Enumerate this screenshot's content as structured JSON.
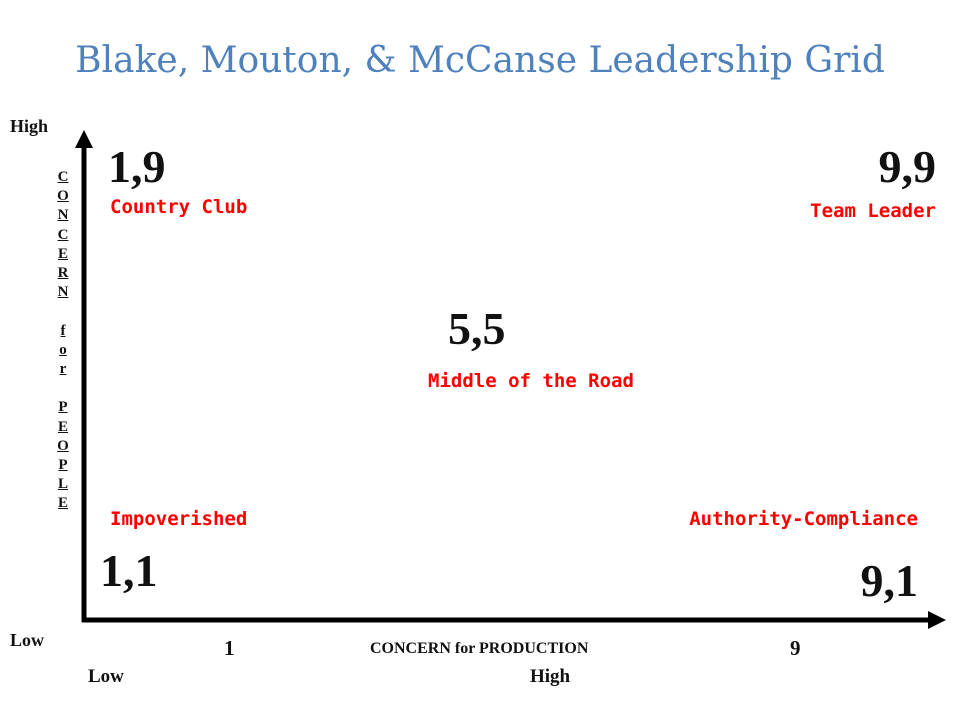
{
  "title": "Blake, Mouton, & McCanse Leadership Grid",
  "y_axis": {
    "label": "CONCERN for PEOPLE",
    "high": "High",
    "low": "Low"
  },
  "x_axis": {
    "label": "CONCERN for PRODUCTION",
    "tick_min": "1",
    "tick_max": "9",
    "low": "Low",
    "high": "High"
  },
  "quadrants": {
    "country_club": {
      "coord": "1,9",
      "name": "Country Club"
    },
    "team_leader": {
      "coord": "9,9",
      "name": "Team Leader"
    },
    "middle_road": {
      "coord": "5,5",
      "name": "Middle of the Road"
    },
    "impoverished": {
      "coord": "1,1",
      "name": "Impoverished"
    },
    "authority": {
      "coord": "9,1",
      "name": "Authority-Compliance"
    }
  },
  "colors": {
    "title": "#4f81bd",
    "style_label": "#ff0000",
    "text": "#111111",
    "axis": "#000000"
  }
}
